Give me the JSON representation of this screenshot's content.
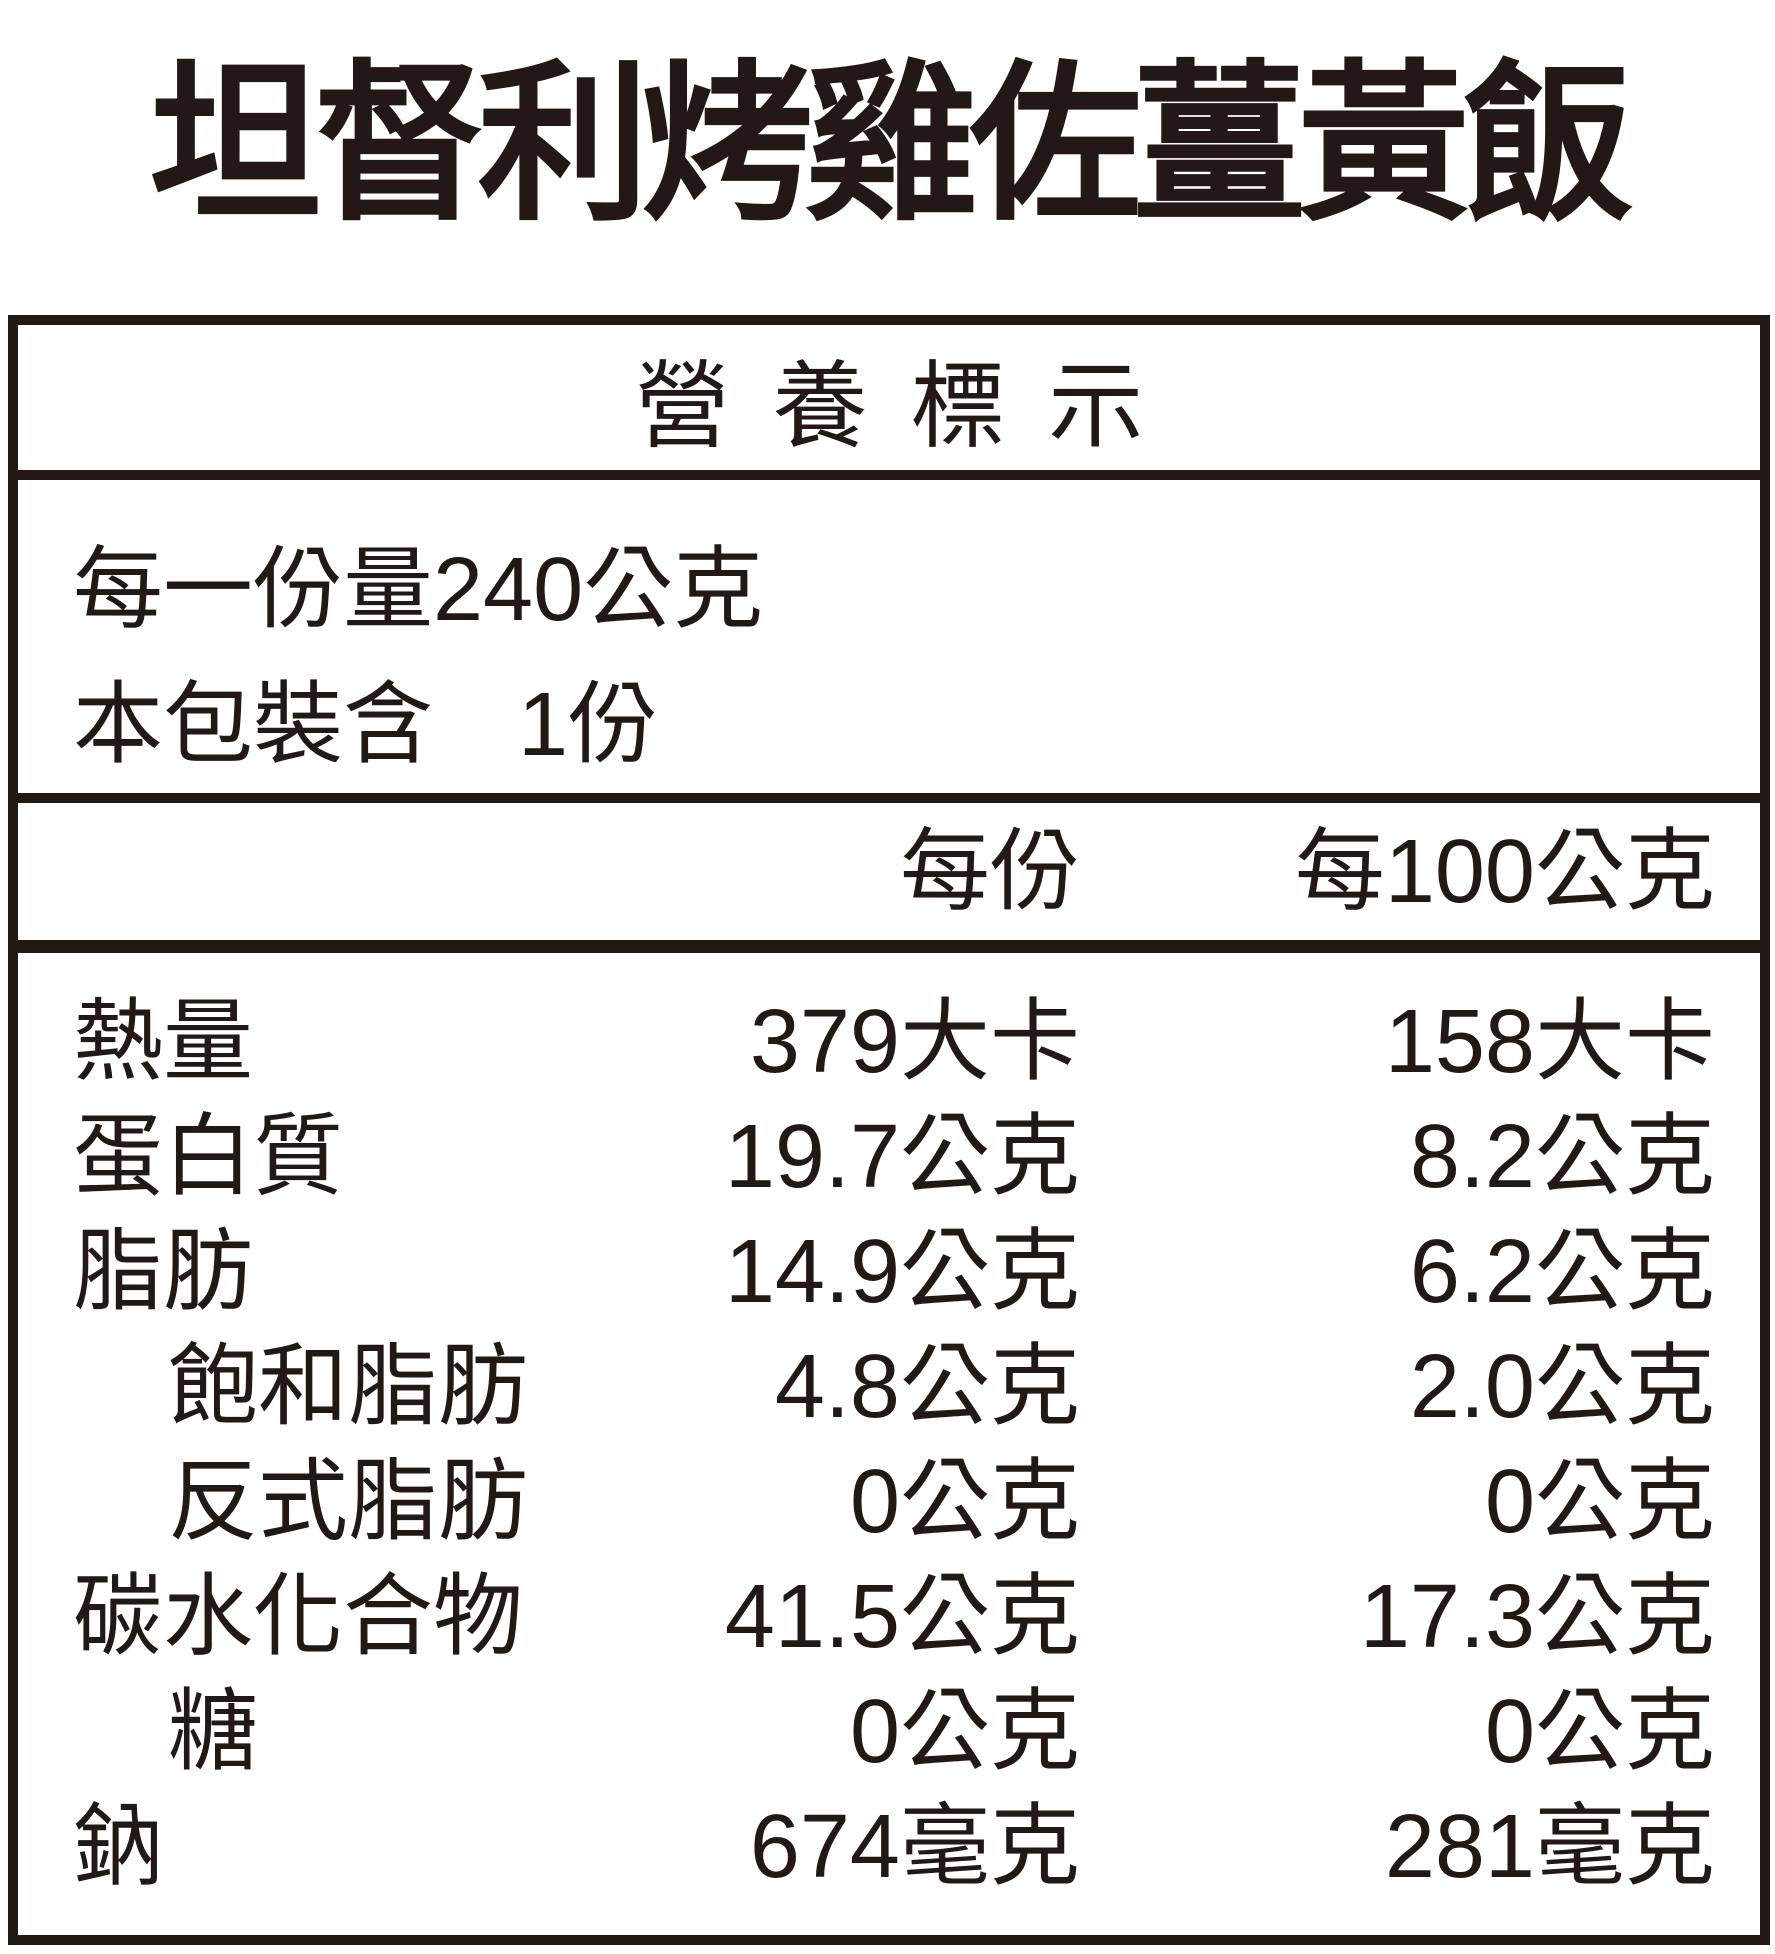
{
  "title": "坦督利烤雞佐薑黃飯",
  "label": {
    "header": "營養標示",
    "serving": {
      "serving_size_label": "每一份量",
      "serving_size_value": "240公克",
      "servings_label": "本包裝含",
      "servings_value": "1份"
    },
    "columns": {
      "per_serving": "每份",
      "per_100g": "每100公克"
    },
    "rows": [
      {
        "name": "熱量",
        "indent": false,
        "per_serving": "379大卡",
        "per_100g": "158大卡"
      },
      {
        "name": "蛋白質",
        "indent": false,
        "per_serving": "19.7公克",
        "per_100g": "8.2公克"
      },
      {
        "name": "脂肪",
        "indent": false,
        "per_serving": "14.9公克",
        "per_100g": "6.2公克"
      },
      {
        "name": "飽和脂肪",
        "indent": true,
        "per_serving": "4.8公克",
        "per_100g": "2.0公克"
      },
      {
        "name": "反式脂肪",
        "indent": true,
        "per_serving": "0公克",
        "per_100g": "0公克"
      },
      {
        "name": "碳水化合物",
        "indent": false,
        "per_serving": "41.5公克",
        "per_100g": "17.3公克"
      },
      {
        "name": "糖",
        "indent": true,
        "per_serving": "0公克",
        "per_100g": "0公克"
      },
      {
        "name": "鈉",
        "indent": false,
        "per_serving": "674毫克",
        "per_100g": "281毫克"
      }
    ]
  },
  "colors": {
    "ink": "#231815",
    "background": "#ffffff"
  }
}
